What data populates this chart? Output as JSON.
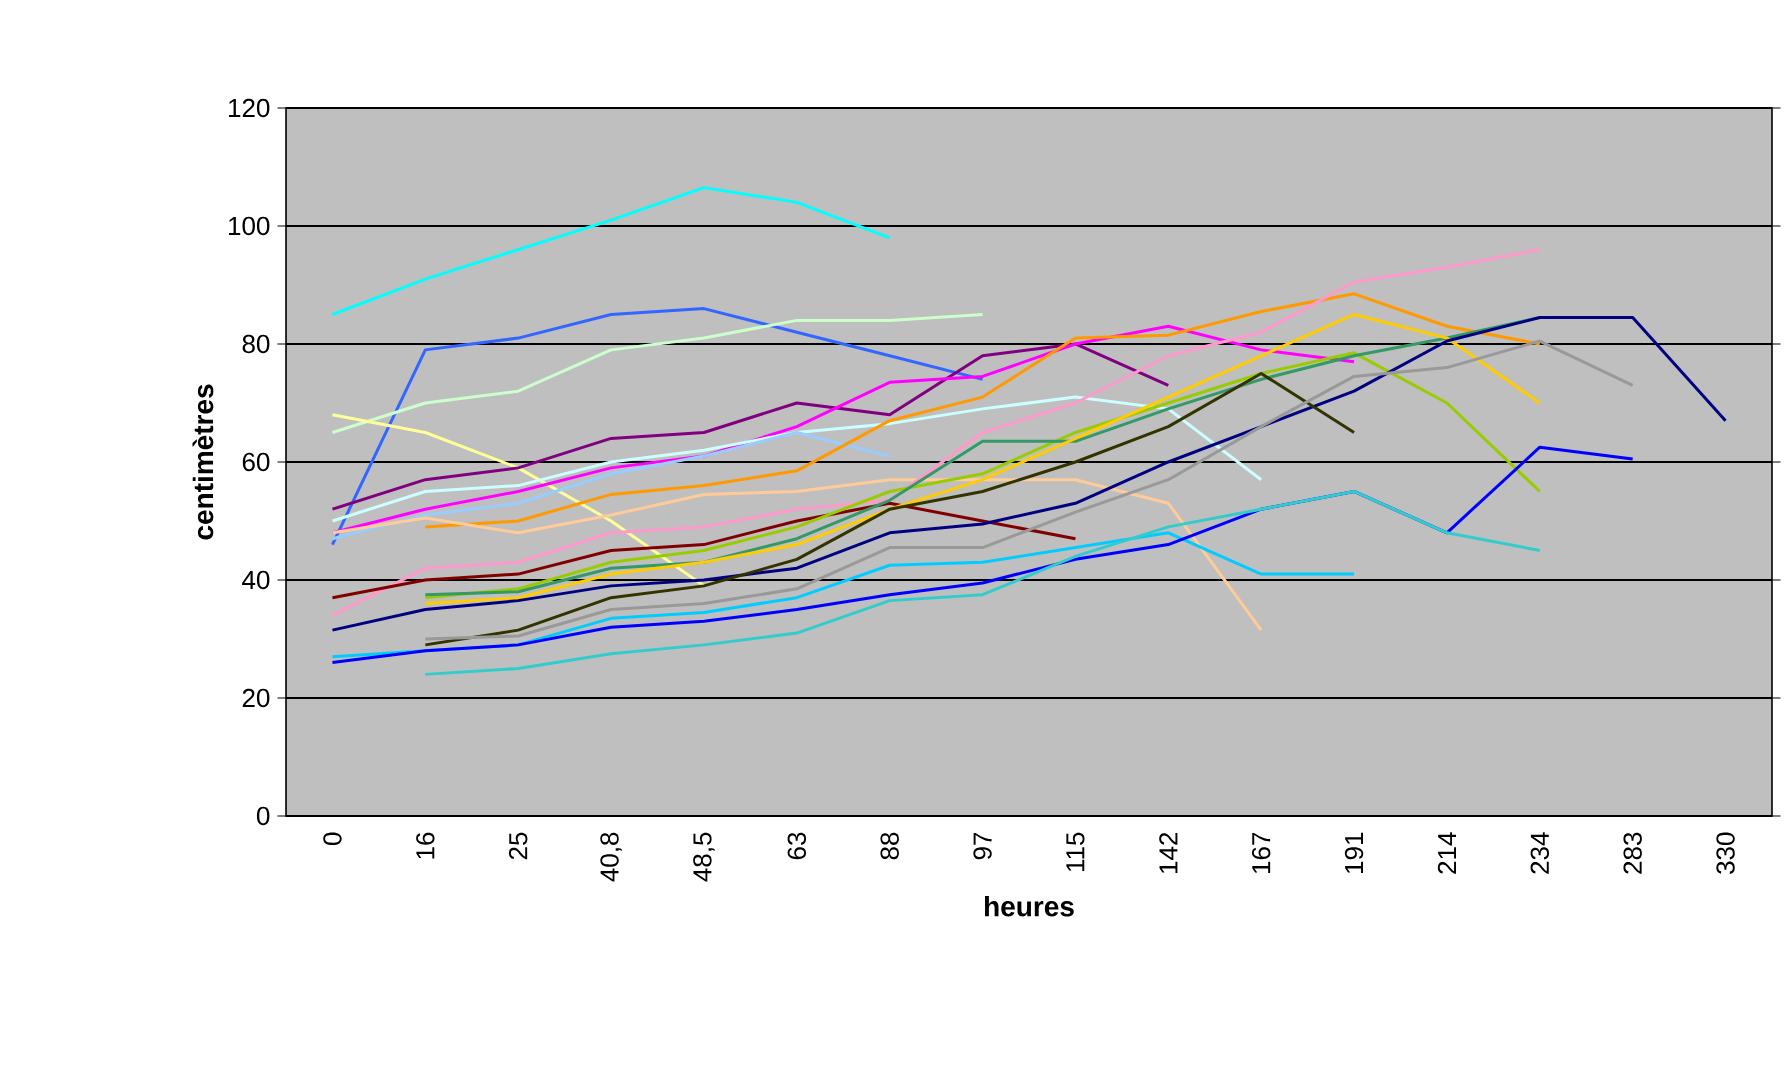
{
  "chart_data": {
    "type": "line",
    "xlabel": "heures",
    "ylabel": "centimètres",
    "categories": [
      "0",
      "16",
      "25",
      "40,8",
      "48,5",
      "63",
      "88",
      "97",
      "115",
      "142",
      "167",
      "191",
      "214",
      "234",
      "283",
      "330"
    ],
    "ylim": [
      0,
      120
    ],
    "yticks": [
      0,
      20,
      40,
      60,
      80,
      100,
      120
    ],
    "grid": "y",
    "marker": "none",
    "line_style": "solid",
    "series": [
      {
        "color": "#00ffff",
        "values": [
          85,
          91,
          96,
          101,
          106.5,
          104,
          98,
          null,
          null,
          null,
          null,
          null,
          null,
          null,
          null,
          null
        ]
      },
      {
        "color": "#3366ff",
        "values": [
          46,
          79,
          81,
          85,
          86,
          82,
          78,
          74,
          null,
          null,
          null,
          null,
          null,
          null,
          null,
          null
        ]
      },
      {
        "color": "#ccffcc",
        "values": [
          65,
          70,
          72,
          79,
          81,
          84,
          84,
          85,
          null,
          null,
          null,
          null,
          null,
          null,
          null,
          null
        ]
      },
      {
        "color": "#ffff99",
        "values": [
          68,
          65,
          59,
          50,
          39,
          null,
          null,
          null,
          null,
          null,
          null,
          null,
          null,
          null,
          null,
          null
        ]
      },
      {
        "color": "#800080",
        "values": [
          52,
          57,
          59,
          64,
          65,
          70,
          68,
          78,
          80,
          73,
          null,
          null,
          null,
          null,
          null,
          null
        ]
      },
      {
        "color": "#ff00ff",
        "values": [
          48,
          52,
          55,
          59,
          61,
          66,
          73.5,
          74.5,
          80,
          83,
          79,
          77,
          null,
          null,
          null,
          null
        ]
      },
      {
        "color": "#ccffff",
        "values": [
          50,
          55,
          56,
          60,
          62,
          65,
          66.5,
          69,
          71,
          69,
          57,
          null,
          null,
          null,
          null,
          null
        ]
      },
      {
        "color": "#99ccff",
        "values": [
          47,
          51,
          53,
          58,
          61,
          65,
          61,
          null,
          null,
          null,
          null,
          null,
          null,
          null,
          null,
          null
        ]
      },
      {
        "color": "#ff9900",
        "values": [
          null,
          49,
          50,
          54.5,
          56,
          58.5,
          67,
          71,
          81,
          81.5,
          85.5,
          88.5,
          83,
          80,
          null,
          null
        ]
      },
      {
        "color": "#ffcc99",
        "values": [
          48,
          50.5,
          48,
          51,
          54.5,
          55,
          57,
          57,
          57,
          53,
          31.5,
          null,
          null,
          null,
          null,
          null
        ]
      },
      {
        "color": "#ff99cc",
        "values": [
          34,
          42,
          43,
          48,
          49,
          52,
          53.5,
          65,
          70,
          78,
          82,
          90.5,
          93,
          96,
          null,
          null
        ]
      },
      {
        "color": "#800000",
        "values": [
          37,
          40,
          41,
          45,
          46,
          50,
          53,
          50,
          47,
          null,
          null,
          null,
          null,
          null,
          null,
          null
        ]
      },
      {
        "color": "#99cc00",
        "values": [
          null,
          37,
          38.5,
          43,
          45,
          49,
          55,
          58,
          65,
          70,
          75,
          78.5,
          70,
          55,
          null,
          null
        ]
      },
      {
        "color": "#339966",
        "values": [
          null,
          37.5,
          38,
          42,
          43,
          47,
          53.5,
          63.5,
          63.5,
          69,
          74,
          78,
          81,
          84.5,
          null,
          null
        ]
      },
      {
        "color": "#ffcc00",
        "values": [
          null,
          36,
          37,
          41,
          43,
          46,
          52,
          57,
          64,
          71,
          78,
          85,
          81,
          70,
          null,
          null
        ]
      },
      {
        "color": "#000080",
        "values": [
          31.5,
          35,
          36.5,
          39,
          40,
          42,
          48,
          49.5,
          53,
          60,
          66,
          72,
          80.5,
          84.5,
          84.5,
          67
        ]
      },
      {
        "color": "#333300",
        "values": [
          null,
          29,
          31.5,
          37,
          39,
          43.5,
          52,
          55,
          60,
          66,
          75,
          65,
          null,
          null,
          null,
          null
        ]
      },
      {
        "color": "#999999",
        "values": [
          null,
          30,
          30.5,
          35,
          36,
          38.5,
          45.5,
          45.5,
          51.5,
          57,
          66,
          74.5,
          76,
          80.5,
          73,
          null
        ]
      },
      {
        "color": "#00ccff",
        "values": [
          27,
          28,
          29,
          33.5,
          34.5,
          37,
          42.5,
          43,
          45.5,
          48,
          41,
          41,
          null,
          null,
          null,
          null
        ]
      },
      {
        "color": "#0000ff",
        "values": [
          26,
          28,
          29,
          32,
          33,
          35,
          37.5,
          39.5,
          43.5,
          46,
          52,
          55,
          48,
          62.5,
          60.5,
          null
        ]
      },
      {
        "color": "#33cccc",
        "values": [
          null,
          24,
          25,
          27.5,
          29,
          31,
          36.5,
          37.5,
          44,
          49,
          52,
          55,
          48,
          45,
          null,
          null
        ]
      }
    ]
  }
}
